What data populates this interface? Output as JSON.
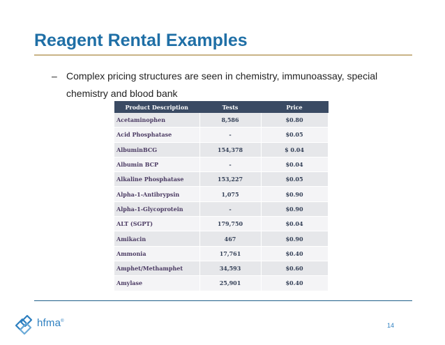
{
  "slide": {
    "title": "Reagent Rental Examples",
    "bullet_dash": "–",
    "bullet_text": "Complex pricing structures are seen in chemistry, immunoassay, special chemistry and blood bank",
    "page_number": "14"
  },
  "table": {
    "headers": [
      "Product Description",
      "Tests",
      "Price"
    ],
    "rows": [
      [
        "Acetaminophen",
        "8,586",
        "$0.80"
      ],
      [
        "Acid Phosphatase",
        "-",
        "$0.05"
      ],
      [
        "AlbuminBCG",
        "154,378",
        "$ 0.04"
      ],
      [
        "Albumin BCP",
        "-",
        "$0.04"
      ],
      [
        "Alkaline Phosphatase",
        "153,227",
        "$0.05"
      ],
      [
        "Alpha-1-Antibrypsin",
        "1,075",
        "$0.90"
      ],
      [
        "Alpha-1-Glycoprotein",
        "-",
        "$0.90"
      ],
      [
        "ALT (SGPT)",
        "179,750",
        "$0.04"
      ],
      [
        "Amikacin",
        "467",
        "$0.90"
      ],
      [
        "Ammonia",
        "17,761",
        "$0.40"
      ],
      [
        "Amphet/Methamphet",
        "34,593",
        "$0.60"
      ],
      [
        "Amylase",
        "25,901",
        "$0.40"
      ]
    ]
  },
  "logo": {
    "text": "hfma",
    "trademark": "®",
    "icon": "hfma-lattice-logo-icon"
  },
  "colors": {
    "title": "#1f6fa6",
    "accent_rule": "#c9b386",
    "table_header": "#3a4a63",
    "logo_blue": "#2d7fc0"
  }
}
